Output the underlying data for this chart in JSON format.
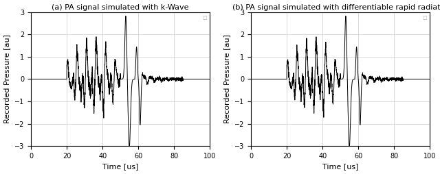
{
  "title_left": "(a) PA signal simulated with k-Wave",
  "title_right": "(b) PA signal simulated with differentiable rapid radiator",
  "xlabel": "Time [us]",
  "ylabel": "Recorded Pressure [au]",
  "xlim": [
    0,
    100
  ],
  "ylim": [
    -3,
    3
  ],
  "yticks": [
    -3,
    -2,
    -1,
    0,
    1,
    2,
    3
  ],
  "xticks": [
    0,
    20,
    40,
    60,
    80,
    100
  ],
  "line_color": "black",
  "line_width": 0.7,
  "grid_color": "#cccccc",
  "background_color": "white",
  "figsize": [
    6.4,
    2.54
  ],
  "dpi": 100,
  "title_fontsize": 8,
  "label_fontsize": 8,
  "tick_fontsize": 7
}
